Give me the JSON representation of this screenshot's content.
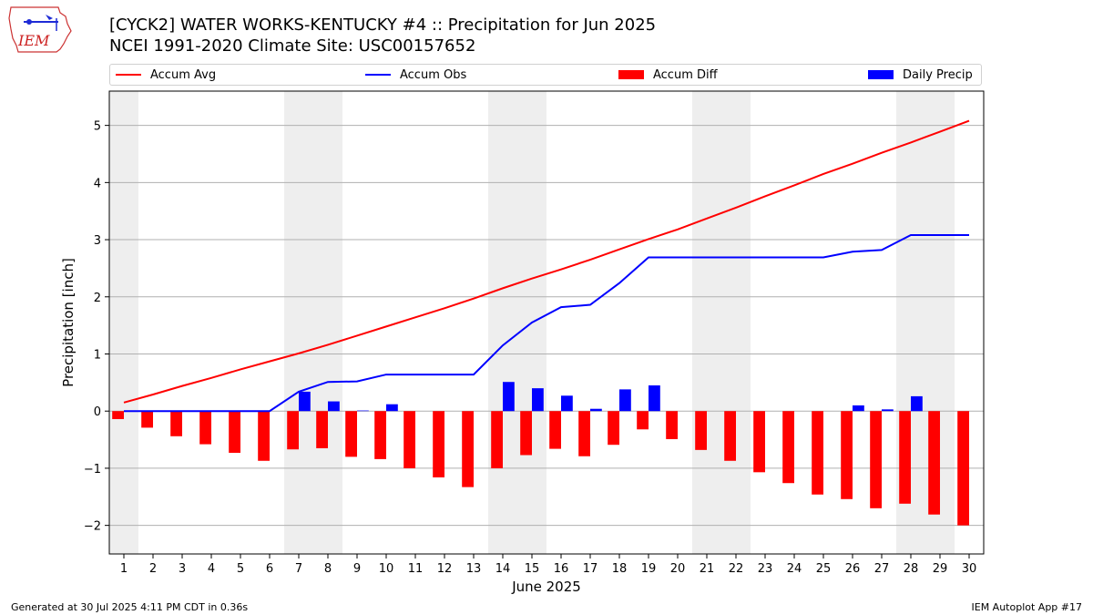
{
  "title_line1": "[CYCK2] WATER WORKS-KENTUCKY #4 :: Precipitation for Jun 2025",
  "title_line2": "NCEI 1991-2020 Climate Site: USC00157652",
  "logo_text": "IEM",
  "footer_left": "Generated at 30 Jul 2025 4:11 PM CDT in 0.36s",
  "footer_right": "IEM Autoplot App #17",
  "colors": {
    "avg": "#ff0000",
    "obs": "#0000ff",
    "diff": "#ff0000",
    "daily": "#0000ff",
    "weekend_shade": "#eeeeee",
    "grid": "#b0b0b0"
  },
  "chart_data": {
    "type": "bar",
    "xlabel": "June 2025",
    "ylabel": "Precipitation [inch]",
    "ylim": [
      -2.5,
      5.6
    ],
    "yticks": [
      -2,
      -1,
      0,
      1,
      2,
      3,
      4,
      5
    ],
    "grid": true,
    "legend_placement": "top",
    "days": [
      1,
      2,
      3,
      4,
      5,
      6,
      7,
      8,
      9,
      10,
      11,
      12,
      13,
      14,
      15,
      16,
      17,
      18,
      19,
      20,
      21,
      22,
      23,
      24,
      25,
      26,
      27,
      28,
      29,
      30
    ],
    "shaded_days": [
      1,
      7,
      8,
      14,
      15,
      21,
      22,
      28,
      29
    ],
    "series": [
      {
        "name": "Accum Avg",
        "kind": "line",
        "values": [
          0.15,
          0.29,
          0.44,
          0.58,
          0.73,
          0.87,
          1.01,
          1.16,
          1.32,
          1.48,
          1.64,
          1.8,
          1.97,
          2.15,
          2.32,
          2.48,
          2.65,
          2.83,
          3.01,
          3.18,
          3.37,
          3.56,
          3.76,
          3.95,
          4.15,
          4.33,
          4.52,
          4.7,
          4.89,
          5.08
        ]
      },
      {
        "name": "Accum Obs",
        "kind": "line",
        "values": [
          0.0,
          0.0,
          0.0,
          0.0,
          0.0,
          0.0,
          0.34,
          0.51,
          0.52,
          0.64,
          0.64,
          0.64,
          0.64,
          1.15,
          1.55,
          1.82,
          1.86,
          2.24,
          2.69,
          2.69,
          2.69,
          2.69,
          2.69,
          2.69,
          2.69,
          2.79,
          2.82,
          3.08,
          3.08,
          3.08
        ]
      },
      {
        "name": "Accum Diff",
        "kind": "bar",
        "values": [
          -0.14,
          -0.29,
          -0.44,
          -0.58,
          -0.73,
          -0.87,
          -0.67,
          -0.65,
          -0.8,
          -0.84,
          -1.0,
          -1.16,
          -1.33,
          -1.0,
          -0.77,
          -0.66,
          -0.79,
          -0.59,
          -0.32,
          -0.49,
          -0.68,
          -0.87,
          -1.07,
          -1.26,
          -1.46,
          -1.54,
          -1.7,
          -1.62,
          -1.81,
          -2.0
        ]
      },
      {
        "name": "Daily Precip",
        "kind": "bar",
        "values": [
          0.0,
          0.0,
          0.0,
          0.0,
          0.0,
          0.0,
          0.34,
          0.17,
          0.01,
          0.12,
          0.0,
          0.0,
          0.0,
          0.51,
          0.4,
          0.27,
          0.04,
          0.38,
          0.45,
          0.0,
          0.0,
          0.0,
          0.0,
          0.0,
          0.0,
          0.1,
          0.03,
          0.26,
          0.0,
          0.0
        ]
      }
    ]
  }
}
